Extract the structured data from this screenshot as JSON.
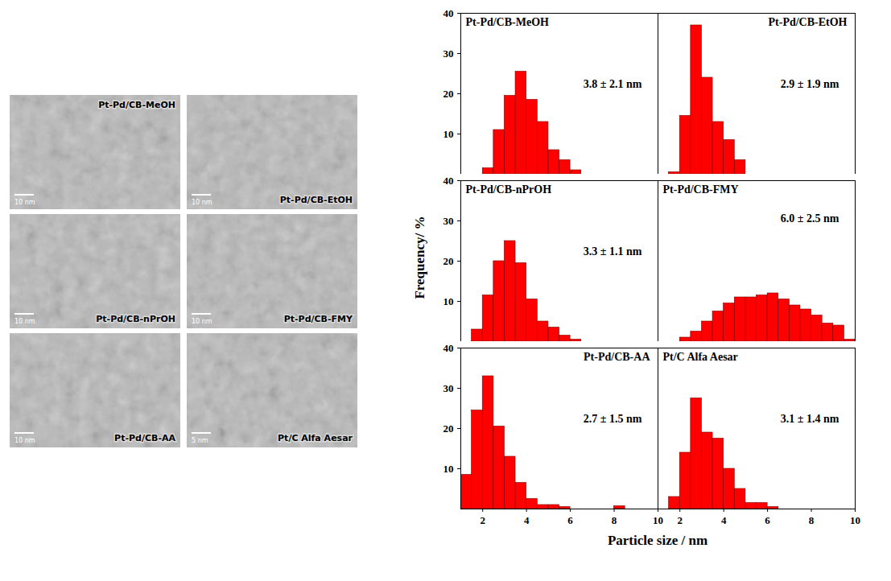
{
  "chart_data": [
    {
      "type": "histogram",
      "title": "Pt-Pd/CB-MeOH",
      "annotation": "3.8 ± 2.1 nm",
      "bins": [
        2,
        2.5,
        3,
        3.5,
        4,
        4.5,
        5,
        5.5,
        6,
        6.5
      ],
      "values": [
        1.5,
        11,
        19.5,
        25.5,
        18.5,
        13,
        6,
        3.5,
        1
      ],
      "color": "#ff0000",
      "xlim": [
        1,
        10
      ],
      "ylim": [
        0,
        40
      ],
      "yticks": [
        10,
        20,
        30,
        40
      ],
      "tick_labels": "y"
    },
    {
      "type": "histogram",
      "title": "Pt-Pd/CB-EtOH",
      "annotation": "2.9 ± 1.9 nm",
      "bins": [
        1.5,
        2,
        2.5,
        3,
        3.5,
        4,
        4.5,
        5
      ],
      "values": [
        0.5,
        14.5,
        37,
        24,
        13,
        8.5,
        3.5
      ],
      "color": "#ff0000",
      "xlim": [
        1,
        10
      ],
      "ylim": [
        0,
        40
      ],
      "tick_labels": false
    },
    {
      "type": "histogram",
      "title": "Pt-Pd/CB-nPrOH",
      "annotation": "3.3 ± 1.1 nm",
      "bins": [
        1.5,
        2,
        2.5,
        3,
        3.5,
        4,
        4.5,
        5,
        5.5,
        6,
        6.5
      ],
      "values": [
        3,
        11.5,
        20,
        25,
        19.5,
        10.5,
        5,
        3.5,
        1.5,
        0.5
      ],
      "color": "#ff0000",
      "xlim": [
        1,
        10
      ],
      "ylim": [
        0,
        40
      ],
      "yticks": [
        10,
        20,
        30,
        40
      ],
      "tick_labels": "y"
    },
    {
      "type": "histogram",
      "title": "Pt-Pd/CB-FMY",
      "annotation": "6.0 ± 2.5 nm",
      "bins": [
        2,
        2.5,
        3,
        3.5,
        4,
        4.5,
        5,
        5.5,
        6,
        6.5,
        7,
        7.5,
        8,
        8.5,
        9,
        9.5,
        10
      ],
      "values": [
        1,
        2.5,
        5,
        7.5,
        9.5,
        11,
        11,
        11.5,
        12,
        10.5,
        9,
        8,
        6.5,
        4.5,
        4,
        0.5
      ],
      "color": "#ff0000",
      "xlim": [
        1,
        10
      ],
      "ylim": [
        0,
        40
      ],
      "tick_labels": false
    },
    {
      "type": "histogram",
      "title": "Pt-Pd/CB-AA",
      "annotation": "2.7 ± 1.5 nm",
      "bins": [
        1,
        1.5,
        2,
        2.5,
        3,
        3.5,
        4,
        4.5,
        5,
        5.5,
        6,
        6.5,
        7,
        7.5,
        8,
        8.5,
        9
      ],
      "values": [
        8.5,
        24.5,
        33,
        20.5,
        13,
        6.5,
        2.5,
        1,
        1,
        0.5,
        0,
        0,
        0,
        0,
        0.7,
        0
      ],
      "color": "#ff0000",
      "xlim": [
        1,
        10
      ],
      "ylim": [
        0,
        40
      ],
      "xticks": [
        2,
        4,
        6,
        8,
        10
      ],
      "yticks": [
        10,
        20,
        30,
        40
      ]
    },
    {
      "type": "histogram",
      "title": "Pt/C Alfa Aesar",
      "annotation": "3.1 ± 1.4 nm",
      "bins": [
        1.5,
        2,
        2.5,
        3,
        3.5,
        4,
        4.5,
        5,
        5.5,
        6,
        6.5
      ],
      "values": [
        3,
        14,
        27.5,
        19,
        17.5,
        10,
        5,
        1.5,
        1.5,
        0.5
      ],
      "color": "#ff0000",
      "xlim": [
        1,
        10
      ],
      "ylim": [
        0,
        40
      ],
      "xticks": [
        2,
        4,
        6,
        8,
        10
      ],
      "tick_labels": "x"
    }
  ],
  "xlabel": "Particle size / nm",
  "ylabel": "Frequency/ %",
  "tem_images": [
    {
      "label": "Pt-Pd/CB-MeOH",
      "scale_bar": "10 nm"
    },
    {
      "label": "Pt-Pd/CB-EtOH",
      "scale_bar": "10 nm"
    },
    {
      "label": "Pt-Pd/CB-nPrOH",
      "scale_bar": "10 nm"
    },
    {
      "label": "Pt-Pd/CB-FMY",
      "scale_bar": "10 nm"
    },
    {
      "label": "Pt-Pd/CB-AA",
      "scale_bar": "10 nm"
    },
    {
      "label": "Pt/C Alfa Aesar",
      "scale_bar": "5 nm"
    }
  ]
}
